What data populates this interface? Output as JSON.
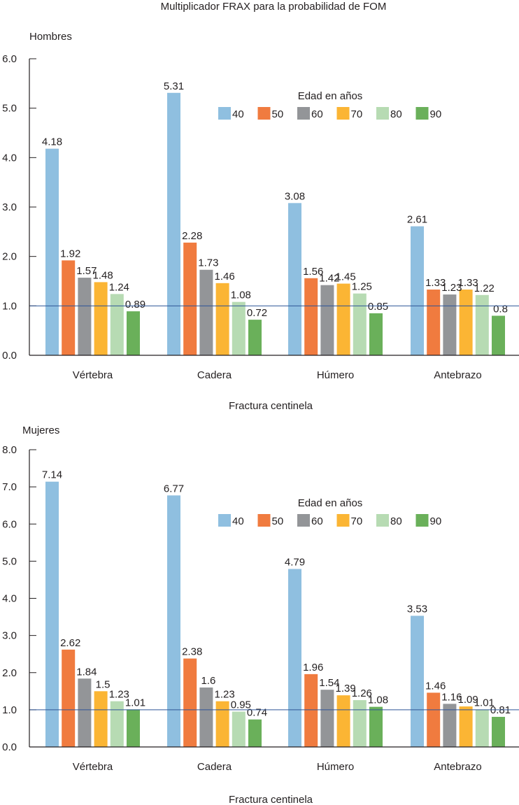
{
  "chart_data": {
    "type": "bar",
    "title": "Multiplicador FRAX para la probabilidad de FOM",
    "legend": {
      "title": "Edad en años",
      "placement": "top-right"
    },
    "series_names": [
      "40",
      "50",
      "60",
      "70",
      "80",
      "90"
    ],
    "colors": [
      "#8fbfe0",
      "#f07b3f",
      "#939598",
      "#fbb534",
      "#b7dbb3",
      "#6ab05a"
    ],
    "reference_line": {
      "value": 1.0,
      "color": "#2e5597"
    },
    "panels": [
      {
        "label": "Hombres",
        "xlabel": "Fractura centinela",
        "ylabel": "",
        "ylim": [
          0,
          6
        ],
        "yticks": [
          "0.0",
          "1.0",
          "2.0",
          "3.0",
          "4.0",
          "5.0",
          "6.0"
        ],
        "ytick_values": [
          0,
          1,
          2,
          3,
          4,
          5,
          6
        ],
        "categories": [
          "Vértebra",
          "Cadera",
          "Húmero",
          "Antebrazo"
        ],
        "series": [
          {
            "name": "40",
            "values": [
              4.18,
              5.31,
              3.08,
              2.61
            ],
            "labels": [
              "4.18",
              "5.31",
              "3.08",
              "2.61"
            ]
          },
          {
            "name": "50",
            "values": [
              1.92,
              2.28,
              1.56,
              1.33
            ],
            "labels": [
              "1.92",
              "2.28",
              "1.56",
              "1.33"
            ]
          },
          {
            "name": "60",
            "values": [
              1.57,
              1.73,
              1.42,
              1.23
            ],
            "labels": [
              "1.57",
              "1.73",
              "1.42",
              "1.23"
            ]
          },
          {
            "name": "70",
            "values": [
              1.48,
              1.46,
              1.45,
              1.33
            ],
            "labels": [
              "1.48",
              "1.46",
              "1.45",
              "1.33"
            ]
          },
          {
            "name": "80",
            "values": [
              1.24,
              1.08,
              1.25,
              1.22
            ],
            "labels": [
              "1.24",
              "1.08",
              "1.25",
              "1.22"
            ]
          },
          {
            "name": "90",
            "values": [
              0.89,
              0.72,
              0.85,
              0.8
            ],
            "labels": [
              "0.89",
              "0.72",
              "0.85",
              "0.8"
            ]
          }
        ]
      },
      {
        "label": "Mujeres",
        "xlabel": "Fractura centinela",
        "ylabel": "",
        "ylim": [
          0,
          8
        ],
        "yticks": [
          "0.0",
          "1.0",
          "2.0",
          "3.0",
          "4.0",
          "5.0",
          "6.0",
          "7.0",
          "8.0"
        ],
        "ytick_values": [
          0,
          1,
          2,
          3,
          4,
          5,
          6,
          7,
          8
        ],
        "categories": [
          "Vértebra",
          "Cadera",
          "Húmero",
          "Antebrazo"
        ],
        "series": [
          {
            "name": "40",
            "values": [
              7.14,
              6.77,
              4.79,
              3.53
            ],
            "labels": [
              "7.14",
              "6.77",
              "4.79",
              "3.53"
            ]
          },
          {
            "name": "50",
            "values": [
              2.62,
              2.38,
              1.96,
              1.46
            ],
            "labels": [
              "2.62",
              "2.38",
              "1.96",
              "1.46"
            ]
          },
          {
            "name": "60",
            "values": [
              1.84,
              1.6,
              1.54,
              1.16
            ],
            "labels": [
              "1.84",
              "1.6",
              "1.54",
              "1.16"
            ]
          },
          {
            "name": "70",
            "values": [
              1.5,
              1.23,
              1.39,
              1.09
            ],
            "labels": [
              "1.5",
              "1.23",
              "1.39",
              "1.09"
            ]
          },
          {
            "name": "80",
            "values": [
              1.23,
              0.95,
              1.26,
              1.01
            ],
            "labels": [
              "1.23",
              "0.95",
              "1.26",
              "1.01"
            ]
          },
          {
            "name": "90",
            "values": [
              1.01,
              0.74,
              1.08,
              0.81
            ],
            "labels": [
              "1.01",
              "0.74",
              "1.08",
              "0.81"
            ]
          }
        ]
      }
    ]
  }
}
